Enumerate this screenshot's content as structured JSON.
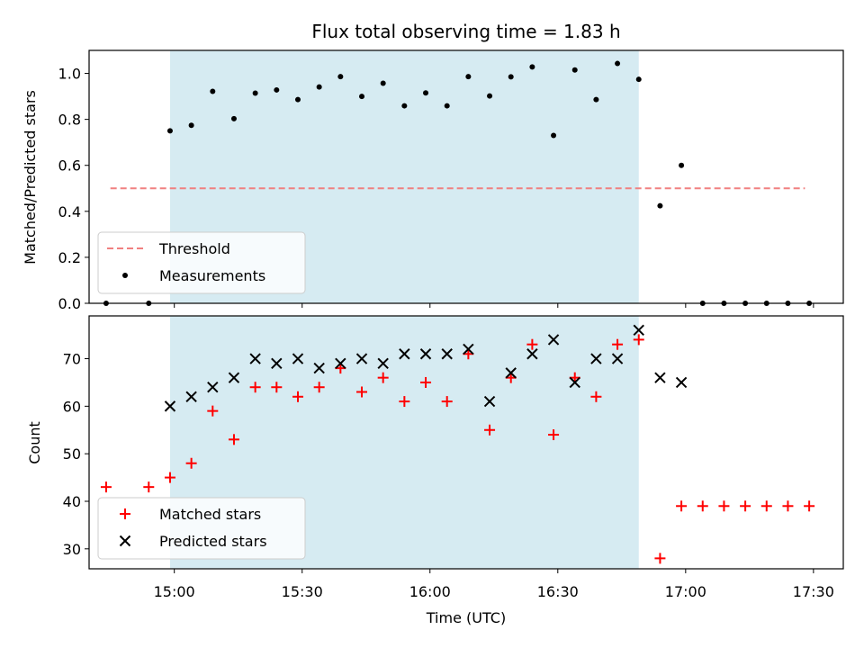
{
  "chart_data": [
    {
      "type": "scatter",
      "title": "Flux total observing time = 1.83 h",
      "xlabel": "",
      "ylabel": "Matched/Predicted stars",
      "ylim": [
        0,
        1.1
      ],
      "y_ticks": [
        "0.0",
        "0.2",
        "0.4",
        "0.6",
        "0.8",
        "1.0"
      ],
      "shaded_interval": [
        "14:59",
        "16:49"
      ],
      "threshold": {
        "name": "Threshold",
        "value": 0.5,
        "x_range": [
          "14:45",
          "17:28"
        ]
      },
      "legend_position": "lower-left",
      "series": [
        {
          "name": "Measurements",
          "marker": "dot",
          "points": [
            [
              "14:44",
              0.0
            ],
            [
              "14:54",
              0.0
            ],
            [
              "14:59",
              0.75
            ],
            [
              "15:04",
              0.774
            ],
            [
              "15:09",
              0.922
            ],
            [
              "15:14",
              0.803
            ],
            [
              "15:19",
              0.914
            ],
            [
              "15:24",
              0.928
            ],
            [
              "15:29",
              0.886
            ],
            [
              "15:34",
              0.941
            ],
            [
              "15:39",
              0.986
            ],
            [
              "15:44",
              0.9
            ],
            [
              "15:49",
              0.957
            ],
            [
              "15:54",
              0.859
            ],
            [
              "15:59",
              0.915
            ],
            [
              "16:04",
              0.859
            ],
            [
              "16:09",
              0.986
            ],
            [
              "16:14",
              0.902
            ],
            [
              "16:19",
              0.985
            ],
            [
              "16:24",
              1.028
            ],
            [
              "16:29",
              0.73
            ],
            [
              "16:34",
              1.015
            ],
            [
              "16:39",
              0.886
            ],
            [
              "16:44",
              1.043
            ],
            [
              "16:49",
              0.974
            ],
            [
              "16:54",
              0.424
            ],
            [
              "16:59",
              0.6
            ],
            [
              "17:04",
              0.0
            ],
            [
              "17:09",
              0.0
            ],
            [
              "17:14",
              0.0
            ],
            [
              "17:19",
              0.0
            ],
            [
              "17:24",
              0.0
            ],
            [
              "17:29",
              0.0
            ]
          ]
        }
      ]
    },
    {
      "type": "scatter",
      "title": "",
      "xlabel": "Time (UTC)",
      "ylabel": "Count",
      "ylim": [
        25.8,
        79
      ],
      "y_ticks": [
        "30",
        "40",
        "50",
        "60",
        "70"
      ],
      "x_ticks": [
        "15:00",
        "15:30",
        "16:00",
        "16:30",
        "17:00",
        "17:30"
      ],
      "xlim": [
        "14:40",
        "17:37"
      ],
      "shaded_interval": [
        "14:59",
        "16:49"
      ],
      "legend_position": "lower-left",
      "series": [
        {
          "name": "Matched stars",
          "marker": "plus",
          "color": "#ff0000",
          "points": [
            [
              "14:44",
              43
            ],
            [
              "14:54",
              43
            ],
            [
              "14:59",
              45
            ],
            [
              "15:04",
              48
            ],
            [
              "15:09",
              59
            ],
            [
              "15:14",
              53
            ],
            [
              "15:19",
              64
            ],
            [
              "15:24",
              64
            ],
            [
              "15:29",
              62
            ],
            [
              "15:34",
              64
            ],
            [
              "15:39",
              68
            ],
            [
              "15:44",
              63
            ],
            [
              "15:49",
              66
            ],
            [
              "15:54",
              61
            ],
            [
              "15:59",
              65
            ],
            [
              "16:04",
              61
            ],
            [
              "16:09",
              71
            ],
            [
              "16:14",
              55
            ],
            [
              "16:19",
              66
            ],
            [
              "16:24",
              73
            ],
            [
              "16:29",
              54
            ],
            [
              "16:34",
              66
            ],
            [
              "16:39",
              62
            ],
            [
              "16:44",
              73
            ],
            [
              "16:49",
              74
            ],
            [
              "16:54",
              28
            ],
            [
              "16:59",
              39
            ],
            [
              "17:04",
              39
            ],
            [
              "17:09",
              39
            ],
            [
              "17:14",
              39
            ],
            [
              "17:19",
              39
            ],
            [
              "17:24",
              39
            ],
            [
              "17:29",
              39
            ]
          ]
        },
        {
          "name": "Predicted stars",
          "marker": "x",
          "color": "#000000",
          "points": [
            [
              "14:59",
              60
            ],
            [
              "15:04",
              62
            ],
            [
              "15:09",
              64
            ],
            [
              "15:14",
              66
            ],
            [
              "15:19",
              70
            ],
            [
              "15:24",
              69
            ],
            [
              "15:29",
              70
            ],
            [
              "15:34",
              68
            ],
            [
              "15:39",
              69
            ],
            [
              "15:44",
              70
            ],
            [
              "15:49",
              69
            ],
            [
              "15:54",
              71
            ],
            [
              "15:59",
              71
            ],
            [
              "16:04",
              71
            ],
            [
              "16:09",
              72
            ],
            [
              "16:14",
              61
            ],
            [
              "16:19",
              67
            ],
            [
              "16:24",
              71
            ],
            [
              "16:29",
              74
            ],
            [
              "16:34",
              65
            ],
            [
              "16:39",
              70
            ],
            [
              "16:44",
              70
            ],
            [
              "16:49",
              76
            ],
            [
              "16:54",
              66
            ],
            [
              "16:59",
              65
            ]
          ]
        }
      ]
    }
  ],
  "colors": {
    "shade": "#add8e6",
    "threshold": "#f08080",
    "matched": "#ff0000",
    "predicted": "#000000",
    "measurement": "#000000"
  }
}
